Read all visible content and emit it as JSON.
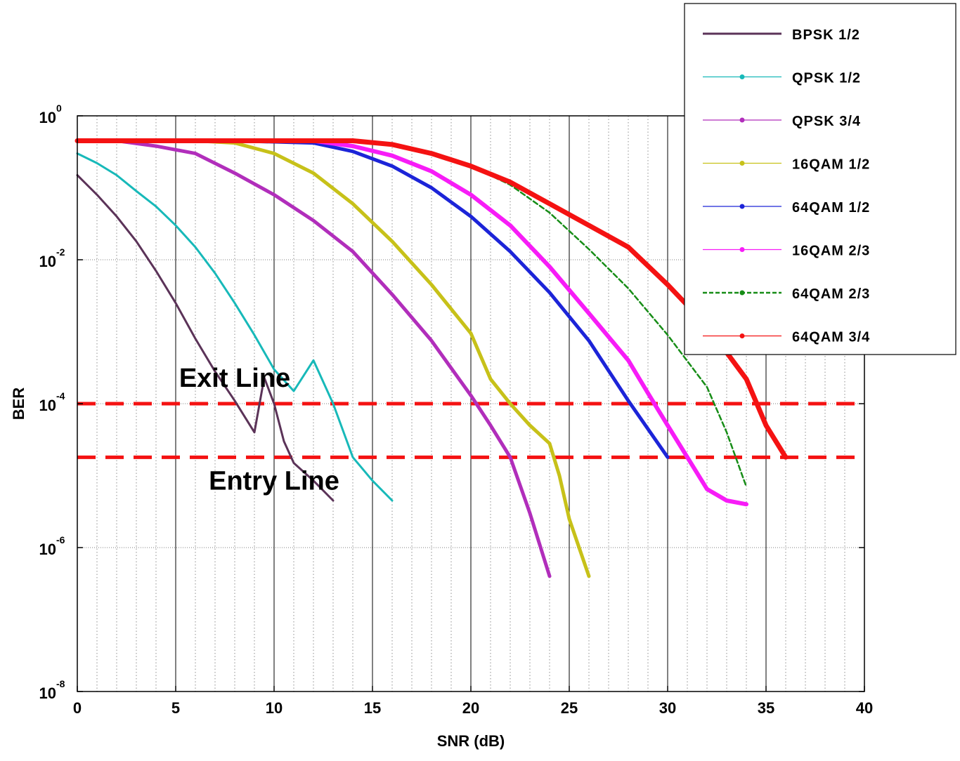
{
  "chart_data": {
    "type": "line",
    "xlabel": "SNR (dB)",
    "ylabel": "BER",
    "xlim": [
      0,
      40
    ],
    "ylim": [
      1e-08,
      1
    ],
    "yscale": "log",
    "grid": true,
    "legend_position": "top-right",
    "x_ticks": [
      "0",
      "5",
      "10",
      "15",
      "20",
      "25",
      "30",
      "35",
      "40"
    ],
    "y_ticks": [
      {
        "base": "10",
        "exp": "0"
      },
      {
        "base": "10",
        "exp": "-2"
      },
      {
        "base": "10",
        "exp": "-4"
      },
      {
        "base": "10",
        "exp": "-6"
      },
      {
        "base": "10",
        "exp": "-8"
      }
    ],
    "series": [
      {
        "name": "BPSK 1/2",
        "color": "#5b3358",
        "style": "solid",
        "width": 3,
        "points": [
          [
            0,
            0.15
          ],
          [
            1,
            0.08
          ],
          [
            2,
            0.04
          ],
          [
            3,
            0.018
          ],
          [
            4,
            0.007
          ],
          [
            5,
            0.0025
          ],
          [
            6,
            0.0008
          ],
          [
            7,
            0.00028
          ],
          [
            8,
            0.00011
          ],
          [
            9,
            4e-05
          ],
          [
            9.5,
            0.00023
          ],
          [
            10,
            0.0001
          ],
          [
            10.5,
            3e-05
          ],
          [
            11,
            1.5e-05
          ],
          [
            12,
            8.5e-06
          ],
          [
            13,
            4.5e-06
          ]
        ]
      },
      {
        "name": "QPSK 1/2",
        "color": "#17b9b9",
        "style": "solid",
        "width": 3,
        "points": [
          [
            0,
            0.3
          ],
          [
            1,
            0.22
          ],
          [
            2,
            0.15
          ],
          [
            3,
            0.09
          ],
          [
            4,
            0.055
          ],
          [
            5,
            0.03
          ],
          [
            6,
            0.015
          ],
          [
            7,
            0.0065
          ],
          [
            8,
            0.0025
          ],
          [
            9,
            0.0009
          ],
          [
            10,
            0.0003
          ],
          [
            11,
            0.00015
          ],
          [
            12,
            0.0004
          ],
          [
            13,
            0.0001
          ],
          [
            14,
            1.8e-05
          ],
          [
            15,
            8.5e-06
          ],
          [
            16,
            4.5e-06
          ]
        ]
      },
      {
        "name": "QPSK 3/4",
        "color": "#b12ebb",
        "style": "solid",
        "width": 5,
        "points": [
          [
            0,
            0.45
          ],
          [
            2,
            0.45
          ],
          [
            4,
            0.38
          ],
          [
            6,
            0.3
          ],
          [
            8,
            0.16
          ],
          [
            10,
            0.08
          ],
          [
            12,
            0.035
          ],
          [
            14,
            0.013
          ],
          [
            16,
            0.0033
          ],
          [
            18,
            0.00075
          ],
          [
            20,
            0.00013
          ],
          [
            21,
            5e-05
          ],
          [
            22,
            1.8e-05
          ],
          [
            23,
            3e-06
          ],
          [
            24,
            4e-07
          ]
        ]
      },
      {
        "name": "16QAM 1/2",
        "color": "#c7c119",
        "style": "solid",
        "width": 5,
        "points": [
          [
            0,
            0.45
          ],
          [
            6,
            0.45
          ],
          [
            8,
            0.42
          ],
          [
            10,
            0.3
          ],
          [
            12,
            0.16
          ],
          [
            14,
            0.06
          ],
          [
            16,
            0.018
          ],
          [
            18,
            0.0045
          ],
          [
            20,
            0.00095
          ],
          [
            21,
            0.00022
          ],
          [
            22,
            0.0001
          ],
          [
            23,
            5e-05
          ],
          [
            24,
            2.8e-05
          ],
          [
            24.5,
            1e-05
          ],
          [
            25,
            2.5e-06
          ],
          [
            26,
            4e-07
          ]
        ]
      },
      {
        "name": "64QAM 1/2",
        "color": "#1c24d8",
        "style": "solid",
        "width": 5,
        "points": [
          [
            0,
            0.45
          ],
          [
            8,
            0.45
          ],
          [
            12,
            0.42
          ],
          [
            14,
            0.32
          ],
          [
            16,
            0.2
          ],
          [
            18,
            0.1
          ],
          [
            20,
            0.04
          ],
          [
            22,
            0.013
          ],
          [
            24,
            0.0035
          ],
          [
            26,
            0.00075
          ],
          [
            28,
            0.00011
          ],
          [
            30,
            1.8e-05
          ]
        ]
      },
      {
        "name": "16QAM 2/3",
        "color": "#f71cf7",
        "style": "solid",
        "width": 6,
        "points": [
          [
            0,
            0.45
          ],
          [
            10,
            0.45
          ],
          [
            12,
            0.45
          ],
          [
            14,
            0.38
          ],
          [
            16,
            0.28
          ],
          [
            18,
            0.17
          ],
          [
            20,
            0.08
          ],
          [
            22,
            0.03
          ],
          [
            24,
            0.008
          ],
          [
            26,
            0.0018
          ],
          [
            28,
            0.0004
          ],
          [
            29,
            0.00014
          ],
          [
            30,
            5e-05
          ],
          [
            31,
            1.8e-05
          ],
          [
            32,
            6.5e-06
          ],
          [
            33,
            4.5e-06
          ],
          [
            34,
            4e-06
          ]
        ]
      },
      {
        "name": "64QAM 2/3",
        "color": "#178d17",
        "style": "dash",
        "width": 2.5,
        "points": [
          [
            14,
            0.45
          ],
          [
            16,
            0.4
          ],
          [
            18,
            0.3
          ],
          [
            20,
            0.2
          ],
          [
            22,
            0.11
          ],
          [
            24,
            0.045
          ],
          [
            26,
            0.014
          ],
          [
            28,
            0.004
          ],
          [
            30,
            0.0009
          ],
          [
            32,
            0.00017
          ],
          [
            33,
            4e-05
          ],
          [
            34,
            7e-06
          ]
        ]
      },
      {
        "name": "64QAM 3/4",
        "color": "#f41212",
        "style": "solid",
        "width": 7,
        "points": [
          [
            0,
            0.45
          ],
          [
            14,
            0.45
          ],
          [
            16,
            0.4
          ],
          [
            18,
            0.3
          ],
          [
            20,
            0.2
          ],
          [
            22,
            0.12
          ],
          [
            24,
            0.06
          ],
          [
            26,
            0.03
          ],
          [
            28,
            0.015
          ],
          [
            30,
            0.0045
          ],
          [
            32,
            0.0012
          ],
          [
            34,
            0.00022
          ],
          [
            35,
            5e-05
          ],
          [
            36,
            1.8e-05
          ]
        ]
      }
    ],
    "threshold_lines": [
      {
        "y": 0.0001,
        "color": "#f41212"
      },
      {
        "y": 1.8e-05,
        "color": "#f41212"
      }
    ],
    "annotations": [
      {
        "text": "Exit Line",
        "x": 8,
        "y": 0.00023
      },
      {
        "text": "Entry Line",
        "x": 10,
        "y": 8.5e-06
      }
    ]
  }
}
